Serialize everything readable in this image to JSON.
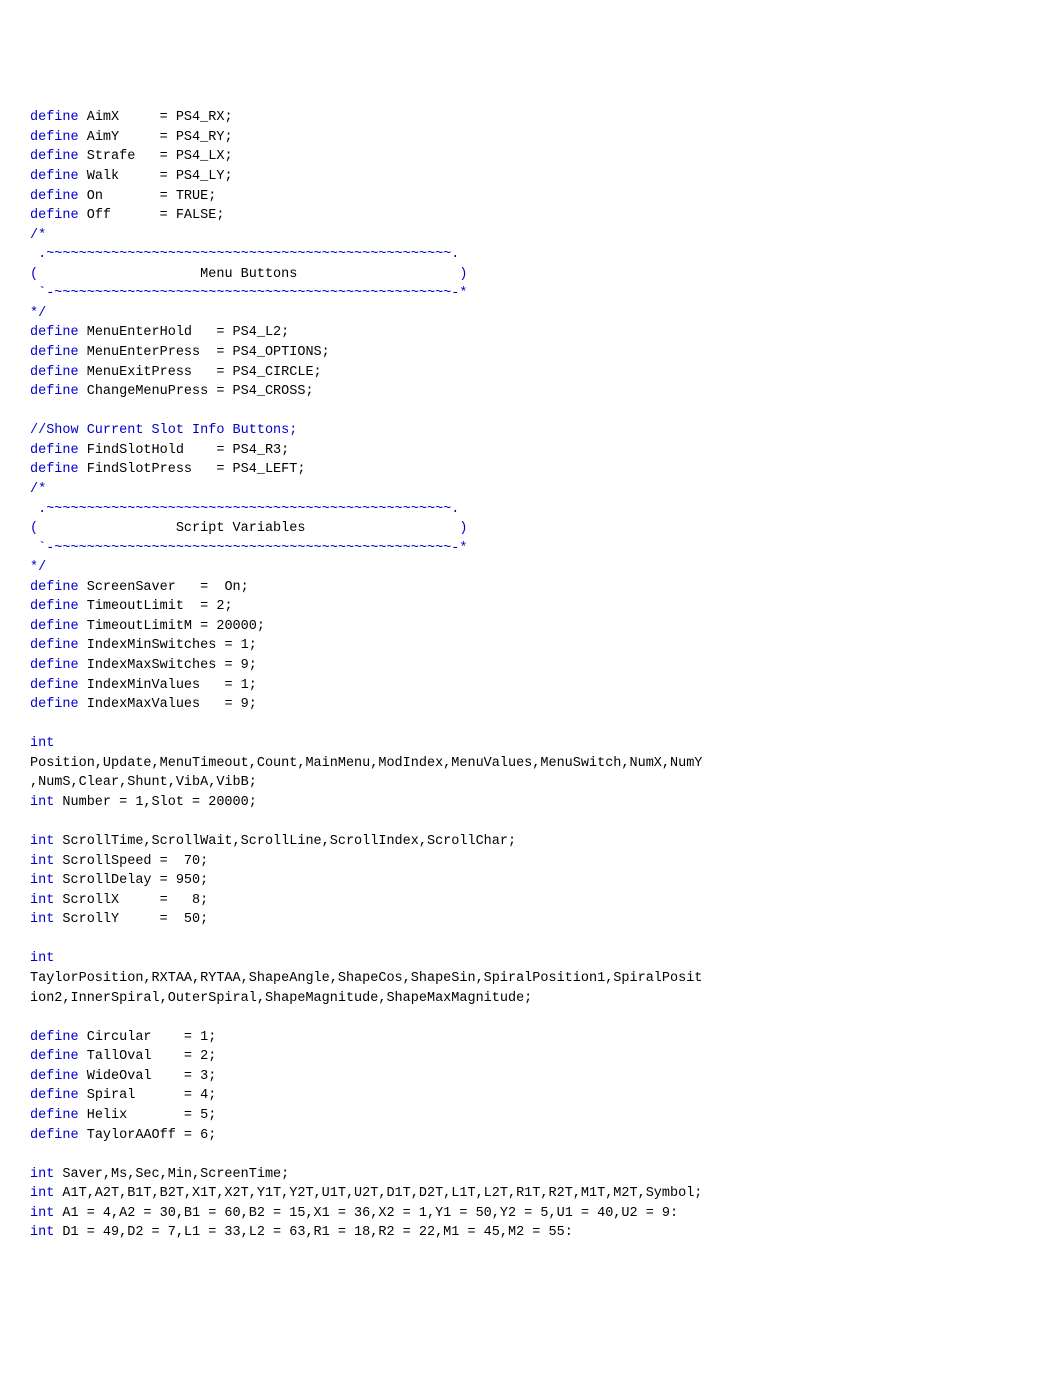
{
  "code": {
    "defs1": [
      [
        "define",
        "AimX",
        "= PS4_RX;"
      ],
      [
        "define",
        "AimY",
        "= PS4_RY;"
      ],
      [
        "define",
        "Strafe",
        "= PS4_LX;"
      ],
      [
        "define",
        "Walk",
        "= PS4_LY;"
      ],
      [
        "define",
        "On",
        "= TRUE;"
      ],
      [
        "define",
        "Off",
        "= FALSE;"
      ]
    ],
    "banner_menu": {
      "open": "/*",
      "top": " .~~~~~~~~~~~~~~~~~~~~~~~~~~~~~~~~~~~~~~~~~~~~~~~~~~.",
      "mid_open": "(",
      "mid_text": "Menu Buttons",
      "mid_close": ")",
      "bot": " `-~~~~~~~~~~~~~~~~~~~~~~~~~~~~~~~~~~~~~~~~~~~~~~~~~-*",
      "close": "*/"
    },
    "menu_defs": [
      [
        "define",
        "MenuEnterHold",
        "= PS4_L2;"
      ],
      [
        "define",
        "MenuEnterPress",
        "= PS4_OPTIONS;"
      ],
      [
        "define",
        "MenuExitPress",
        "= PS4_CIRCLE;"
      ],
      [
        "define",
        "ChangeMenuPress",
        "= PS4_CROSS;"
      ]
    ],
    "comment_slot": "//Show Current Slot Info Buttons;",
    "slot_defs": [
      [
        "define",
        "FindSlotHold",
        "= PS4_R3;"
      ],
      [
        "define",
        "FindSlotPress",
        "= PS4_LEFT;"
      ]
    ],
    "banner_script": {
      "open": "/*",
      "top": " .~~~~~~~~~~~~~~~~~~~~~~~~~~~~~~~~~~~~~~~~~~~~~~~~~~.",
      "mid_open": "(",
      "mid_text": "Script Variables",
      "mid_close": ")",
      "bot": " `-~~~~~~~~~~~~~~~~~~~~~~~~~~~~~~~~~~~~~~~~~~~~~~~~~-*",
      "close": "*/"
    },
    "script_defs": [
      "define ScreenSaver   =  On;",
      "define TimeoutLimit  = 2;",
      "define TimeoutLimitM = 20000;",
      "define IndexMinSwitches = 1;",
      "define IndexMaxSwitches = 9;",
      "define IndexMinValues   = 1;",
      "define IndexMaxValues   = 9;"
    ],
    "int1_kw": "int",
    "int1_rest": "Position,Update,MenuTimeout,Count,MainMenu,ModIndex,MenuValues,MenuSwitch,NumX,NumY\n,NumS,Clear,Shunt,VibA,VibB;",
    "int_number": "int Number = 1,Slot = 20000;",
    "int_scroll_kw_line": "int ScrollTime,ScrollWait,ScrollLine,ScrollIndex,ScrollChar;",
    "scroll_defs": [
      "int ScrollSpeed =  70;",
      "int ScrollDelay = 950;",
      "int ScrollX     =   8;",
      "int ScrollY     =  50;"
    ],
    "int2_kw": "int",
    "int2_rest": "TaylorPosition,RXTAA,RYTAA,ShapeAngle,ShapeCos,ShapeSin,SpiralPosition1,SpiralPosit\nion2,InnerSpiral,OuterSpiral,ShapeMagnitude,ShapeMaxMagnitude;",
    "shape_defs": [
      "define Circular    = 1;",
      "define TallOval    = 2;",
      "define WideOval    = 3;",
      "define Spiral      = 4;",
      "define Helix       = 5;",
      "define TaylorAAOff = 6;"
    ],
    "int_saver": "int Saver,Ms,Sec,Min,ScreenTime;",
    "int_alt": "int A1T,A2T,B1T,B2T,X1T,X2T,Y1T,Y2T,U1T,U2T,D1T,D2T,L1T,L2T,R1T,R2T,M1T,M2T,Symbol;",
    "int_a1": "int A1 = 4,A2 = 30,B1 = 60,B2 = 15,X1 = 36,X2 = 1,Y1 = 50,Y2 = 5,U1 = 40,U2 = 9:",
    "int_d1": "int D1 = 49,D2 = 7,L1 = 33,L2 = 63,R1 = 18,R2 = 22,M1 = 45,M2 = 55:"
  },
  "style": {
    "kw_col": 7,
    "name_col": 16
  }
}
